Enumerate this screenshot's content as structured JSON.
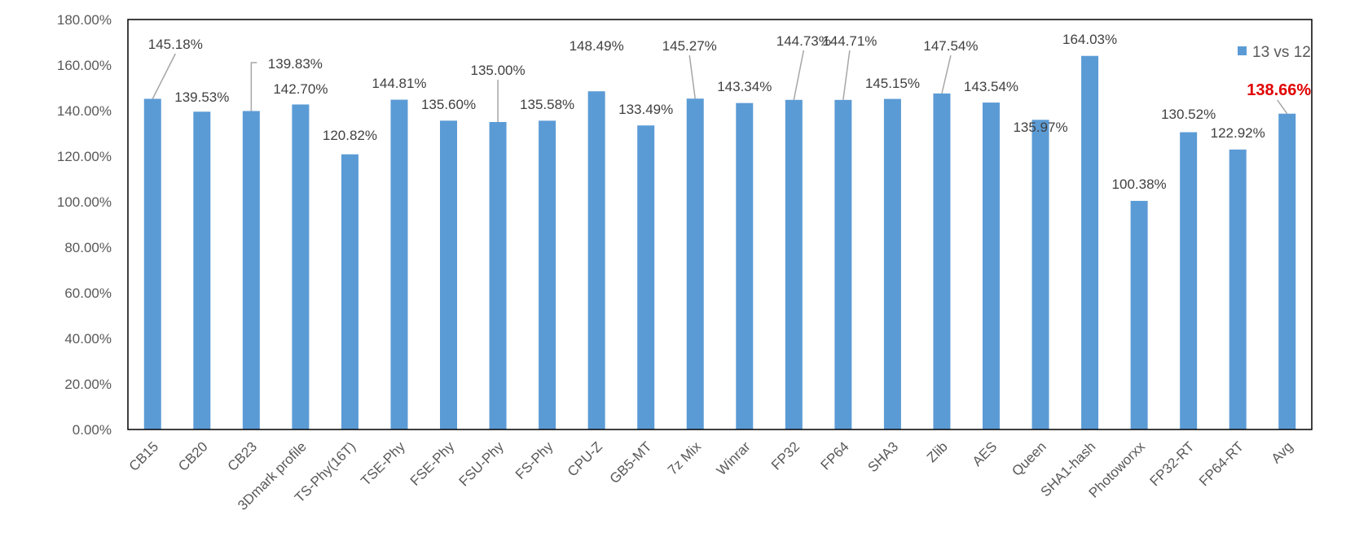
{
  "chart_data": {
    "type": "bar",
    "title": "",
    "xlabel": "",
    "ylabel": "",
    "ylim": [
      0,
      180
    ],
    "y_tick_step": 20,
    "y_tick_format": "percent_2dp",
    "grid": false,
    "legend_position": "top-right",
    "series": [
      {
        "name": "13 vs 12",
        "color": "#5b9bd5",
        "values": [
          145.18,
          139.53,
          139.83,
          142.7,
          120.82,
          144.81,
          135.6,
          135.0,
          135.58,
          148.49,
          133.49,
          145.27,
          143.34,
          144.73,
          144.71,
          145.15,
          147.54,
          143.54,
          135.97,
          164.03,
          100.38,
          130.52,
          122.92,
          138.66
        ]
      }
    ],
    "categories": [
      "CB15",
      "CB20",
      "CB23",
      "3Dmark profile",
      "TS-Phy(16T)",
      "TSE-Phy",
      "FSE-Phy",
      "FSU-Phy",
      "FS-Phy",
      "CPU-Z",
      "GB5-MT",
      "7z Mix",
      "Winrar",
      "FP32",
      "FP64",
      "SHA3",
      "Zlib",
      "AES",
      "Queen",
      "SHA1-hash",
      "Photoworxx",
      "FP32-RT",
      "FP64-RT",
      "Avg"
    ],
    "data_labels": [
      "145.18%",
      "139.53%",
      "139.83%",
      "142.70%",
      "120.82%",
      "144.81%",
      "135.60%",
      "135.00%",
      "135.58%",
      "148.49%",
      "133.49%",
      "145.27%",
      "143.34%",
      "144.73%",
      "144.71%",
      "145.15%",
      "147.54%",
      "143.54%",
      "135.97%",
      "164.03%",
      "100.38%",
      "130.52%",
      "122.92%",
      "138.66%"
    ],
    "highlight_label_index": 23,
    "highlight_label_color": "#e00000",
    "leader_line_indices": [
      0,
      2,
      7,
      11,
      13,
      14,
      16,
      23
    ],
    "leader_line_color": "#a6a6a6",
    "axis_color": "#000000"
  }
}
